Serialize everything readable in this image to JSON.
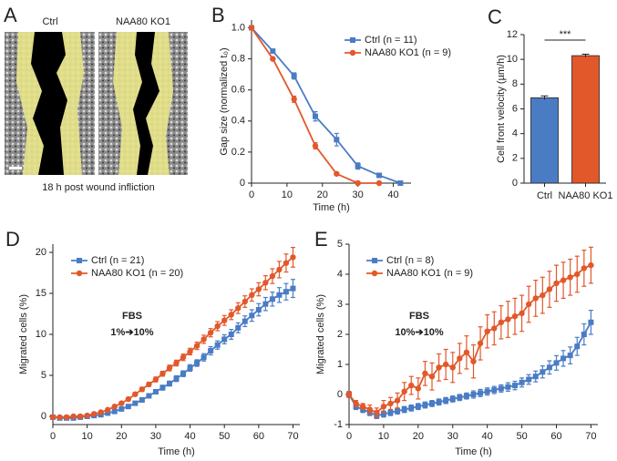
{
  "panel_a": {
    "label": "A",
    "columns": [
      "Ctrl",
      "NAA80 KO1"
    ],
    "caption": "18 h post wound infliction"
  },
  "chart_data": [
    {
      "type": "line",
      "panel_label": "B",
      "xlabel": "Time (h)",
      "ylabel": "Gap size (normalized t₀)",
      "x": [
        0,
        6,
        12,
        18,
        24,
        30,
        36,
        42
      ],
      "xlim": [
        0,
        45
      ],
      "xticks": [
        0,
        10,
        20,
        30,
        40
      ],
      "ylim": [
        0,
        1.05
      ],
      "yticks": [
        0,
        0.2,
        0.4,
        0.6,
        0.8,
        {
          "value": 1,
          "label": "1.0"
        }
      ],
      "series": [
        {
          "name": "Ctrl (n = 11)",
          "color": "#4a7cc4",
          "marker": "square",
          "values": [
            1.0,
            0.85,
            0.69,
            0.43,
            0.28,
            0.11,
            0.05,
            0.0
          ],
          "errors": [
            0,
            0.01,
            0.02,
            0.03,
            0.04,
            0.02,
            0.01,
            0.01
          ]
        },
        {
          "name": "NAA80 KO1 (n = 9)",
          "color": "#e2582a",
          "marker": "circle",
          "values": [
            1.0,
            0.8,
            0.54,
            0.24,
            0.06,
            0.0,
            0.0,
            null
          ],
          "errors": [
            0,
            0.01,
            0.02,
            0.02,
            0.01,
            0.01,
            0.01,
            null
          ]
        }
      ]
    },
    {
      "type": "bar",
      "panel_label": "C",
      "ylabel": "Cell front velocity (µm/h)",
      "categories": [
        "Ctrl",
        "NAA80 KO1"
      ],
      "values": [
        6.9,
        10.3
      ],
      "errors": [
        0.15,
        0.12
      ],
      "colors": [
        "#4a7cc4",
        "#e2582a"
      ],
      "ylim": [
        0,
        12
      ],
      "yticks": [
        0,
        2,
        4,
        6,
        8,
        10,
        12
      ],
      "annotation": "***"
    },
    {
      "type": "line",
      "panel_label": "D",
      "xlabel": "Time (h)",
      "ylabel": "Migrated cells (%)",
      "annotations": [
        "FBS",
        "1%➔10%"
      ],
      "x": [
        0,
        2,
        4,
        6,
        8,
        10,
        12,
        14,
        16,
        18,
        20,
        22,
        24,
        26,
        28,
        30,
        32,
        34,
        36,
        38,
        40,
        42,
        44,
        46,
        48,
        50,
        52,
        54,
        56,
        58,
        60,
        62,
        64,
        66,
        68,
        70
      ],
      "xlim": [
        0,
        72
      ],
      "xticks": [
        0,
        10,
        20,
        30,
        40,
        50,
        60,
        70
      ],
      "ylim": [
        -1,
        21
      ],
      "yticks": [
        0,
        5,
        10,
        15,
        20
      ],
      "series": [
        {
          "name": "Ctrl (n = 21)",
          "color": "#4a7cc4",
          "marker": "square",
          "values": [
            -0.1,
            -0.2,
            -0.2,
            -0.2,
            -0.1,
            0.0,
            0.1,
            0.2,
            0.4,
            0.6,
            0.9,
            1.2,
            1.6,
            2.0,
            2.5,
            3.0,
            3.5,
            4.0,
            4.6,
            5.2,
            5.9,
            6.5,
            7.2,
            8.0,
            8.7,
            9.4,
            10.0,
            10.8,
            11.6,
            12.3,
            13.0,
            13.7,
            14.3,
            14.8,
            15.2,
            15.6
          ],
          "errors": [
            0.05,
            0.05,
            0.05,
            0.05,
            0.05,
            0.05,
            0.05,
            0.1,
            0.1,
            0.1,
            0.15,
            0.15,
            0.2,
            0.2,
            0.25,
            0.25,
            0.3,
            0.3,
            0.35,
            0.35,
            0.4,
            0.4,
            0.45,
            0.5,
            0.5,
            0.55,
            0.6,
            0.6,
            0.65,
            0.7,
            0.75,
            0.8,
            0.85,
            0.9,
            1.0,
            1.1
          ]
        },
        {
          "name": "NAA80 KO1 (n = 20)",
          "color": "#e2582a",
          "marker": "circle",
          "values": [
            -0.1,
            -0.1,
            -0.1,
            0.0,
            0.0,
            0.1,
            0.3,
            0.5,
            0.8,
            1.2,
            1.6,
            2.1,
            2.7,
            3.3,
            3.9,
            4.5,
            5.2,
            5.9,
            6.5,
            7.2,
            7.9,
            8.6,
            9.4,
            10.2,
            11.0,
            11.7,
            12.4,
            13.2,
            14.0,
            14.8,
            15.5,
            16.3,
            17.1,
            17.9,
            18.7,
            19.4
          ],
          "errors": [
            0.05,
            0.05,
            0.05,
            0.05,
            0.05,
            0.05,
            0.1,
            0.1,
            0.1,
            0.15,
            0.15,
            0.2,
            0.2,
            0.25,
            0.25,
            0.3,
            0.3,
            0.35,
            0.35,
            0.4,
            0.4,
            0.45,
            0.5,
            0.5,
            0.55,
            0.6,
            0.6,
            0.65,
            0.7,
            0.75,
            0.8,
            0.85,
            0.9,
            1.0,
            1.1,
            1.2
          ]
        }
      ]
    },
    {
      "type": "line",
      "panel_label": "E",
      "xlabel": "Time (h)",
      "ylabel": "Migrated cells (%)",
      "annotations": [
        "FBS",
        "10%➔10%"
      ],
      "x": [
        0,
        2,
        4,
        6,
        8,
        10,
        12,
        14,
        16,
        18,
        20,
        22,
        24,
        26,
        28,
        30,
        32,
        34,
        36,
        38,
        40,
        42,
        44,
        46,
        48,
        50,
        52,
        54,
        56,
        58,
        60,
        62,
        64,
        66,
        68,
        70
      ],
      "xlim": [
        0,
        72
      ],
      "xticks": [
        0,
        10,
        20,
        30,
        40,
        50,
        60,
        70
      ],
      "ylim": [
        -1,
        5
      ],
      "yticks": [
        -1,
        0,
        1,
        2,
        3,
        4,
        5
      ],
      "series": [
        {
          "name": "Ctrl (n = 8)",
          "color": "#4a7cc4",
          "marker": "square",
          "values": [
            0.0,
            -0.4,
            -0.5,
            -0.6,
            -0.7,
            -0.65,
            -0.6,
            -0.55,
            -0.5,
            -0.45,
            -0.4,
            -0.35,
            -0.3,
            -0.25,
            -0.2,
            -0.15,
            -0.1,
            -0.05,
            0.0,
            0.05,
            0.1,
            0.15,
            0.2,
            0.25,
            0.3,
            0.4,
            0.5,
            0.6,
            0.75,
            0.9,
            1.05,
            1.2,
            1.3,
            1.6,
            2.0,
            2.4
          ],
          "errors": [
            0.1,
            0.1,
            0.1,
            0.1,
            0.1,
            0.1,
            0.1,
            0.1,
            0.1,
            0.1,
            0.1,
            0.1,
            0.1,
            0.1,
            0.1,
            0.1,
            0.1,
            0.1,
            0.12,
            0.12,
            0.12,
            0.12,
            0.12,
            0.14,
            0.14,
            0.15,
            0.16,
            0.18,
            0.2,
            0.22,
            0.24,
            0.26,
            0.28,
            0.3,
            0.35,
            0.4
          ]
        },
        {
          "name": "NAA80 KO1 (n = 9)",
          "color": "#e2582a",
          "marker": "circle",
          "values": [
            0.0,
            -0.3,
            -0.4,
            -0.5,
            -0.6,
            -0.4,
            -0.3,
            -0.2,
            0.1,
            0.3,
            0.2,
            0.7,
            0.6,
            0.9,
            1.0,
            0.9,
            1.2,
            1.4,
            1.1,
            1.7,
            2.1,
            2.2,
            2.4,
            2.5,
            2.6,
            2.7,
            3.0,
            3.2,
            3.3,
            3.5,
            3.7,
            3.8,
            3.9,
            4.0,
            4.2,
            4.3
          ],
          "errors": [
            0.1,
            0.1,
            0.1,
            0.15,
            0.15,
            0.2,
            0.2,
            0.25,
            0.3,
            0.3,
            0.35,
            0.4,
            0.45,
            0.45,
            0.5,
            0.5,
            0.5,
            0.55,
            0.55,
            0.55,
            0.55,
            0.55,
            0.55,
            0.6,
            0.6,
            0.6,
            0.6,
            0.6,
            0.6,
            0.6,
            0.6,
            0.6,
            0.6,
            0.6,
            0.6,
            0.6
          ]
        }
      ]
    }
  ]
}
